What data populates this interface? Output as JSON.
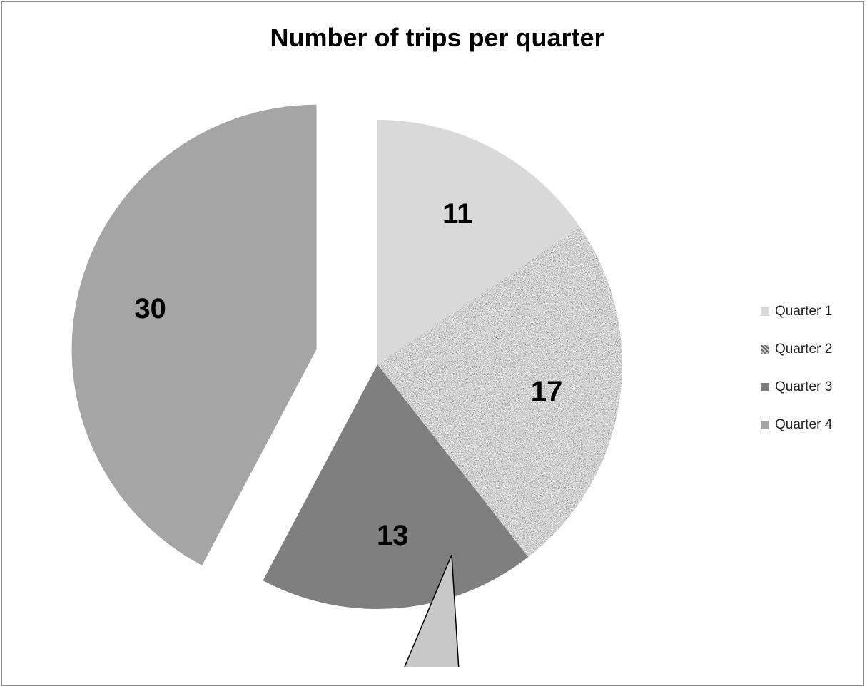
{
  "chart_data": {
    "type": "pie",
    "title": "Number of trips per quarter",
    "categories": [
      "Quarter 1",
      "Quarter 2",
      "Quarter 3",
      "Quarter 4"
    ],
    "values": [
      11,
      17,
      13,
      30
    ],
    "data_labels": [
      "11",
      "17",
      "13",
      "30"
    ],
    "colors": [
      "#d9d9d9",
      "#a3a3a3",
      "#7f7f7f",
      "#a5a5a5"
    ],
    "legend_position": "right",
    "exploded": [
      "Quarter 4"
    ]
  }
}
